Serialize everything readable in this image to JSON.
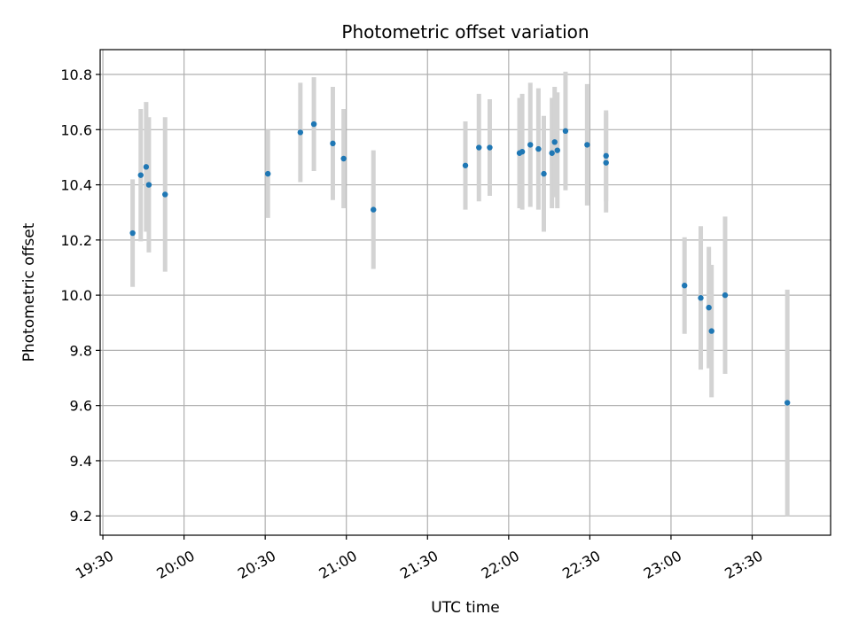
{
  "chart_data": {
    "type": "scatter",
    "title": "Photometric offset variation",
    "xlabel": "UTC time",
    "ylabel": "Photometric offset",
    "grid": true,
    "legend": "none",
    "colors": {
      "points": "#1f77b4",
      "errorbars": "#d3d3d3",
      "grid": "#b0b0b0"
    },
    "xlim": [
      "19:29",
      "23:59"
    ],
    "ylim": [
      9.13,
      10.89
    ],
    "xticks": [
      "19:30",
      "20:00",
      "20:30",
      "21:00",
      "21:30",
      "22:00",
      "22:30",
      "23:00",
      "23:30"
    ],
    "yticks": [
      "9.2",
      "9.4",
      "9.6",
      "9.8",
      "10.0",
      "10.2",
      "10.4",
      "10.6",
      "10.8"
    ],
    "points": [
      {
        "x": "19:41",
        "y": 10.225,
        "err": 0.195
      },
      {
        "x": "19:44",
        "y": 10.435,
        "err": 0.24
      },
      {
        "x": "19:46",
        "y": 10.465,
        "err": 0.235
      },
      {
        "x": "19:47",
        "y": 10.4,
        "err": 0.245
      },
      {
        "x": "19:53",
        "y": 10.365,
        "err": 0.28
      },
      {
        "x": "20:31",
        "y": 10.44,
        "err": 0.16
      },
      {
        "x": "20:43",
        "y": 10.59,
        "err": 0.18
      },
      {
        "x": "20:48",
        "y": 10.62,
        "err": 0.17
      },
      {
        "x": "20:55",
        "y": 10.55,
        "err": 0.205
      },
      {
        "x": "20:59",
        "y": 10.495,
        "err": 0.18
      },
      {
        "x": "21:10",
        "y": 10.31,
        "err": 0.215
      },
      {
        "x": "21:44",
        "y": 10.47,
        "err": 0.16
      },
      {
        "x": "21:49",
        "y": 10.535,
        "err": 0.195
      },
      {
        "x": "21:53",
        "y": 10.535,
        "err": 0.175
      },
      {
        "x": "22:04",
        "y": 10.515,
        "err": 0.2
      },
      {
        "x": "22:05",
        "y": 10.52,
        "err": 0.21
      },
      {
        "x": "22:08",
        "y": 10.545,
        "err": 0.225
      },
      {
        "x": "22:11",
        "y": 10.53,
        "err": 0.22
      },
      {
        "x": "22:13",
        "y": 10.44,
        "err": 0.21
      },
      {
        "x": "22:16",
        "y": 10.515,
        "err": 0.2
      },
      {
        "x": "22:17",
        "y": 10.555,
        "err": 0.2
      },
      {
        "x": "22:18",
        "y": 10.525,
        "err": 0.21
      },
      {
        "x": "22:21",
        "y": 10.595,
        "err": 0.215
      },
      {
        "x": "22:29",
        "y": 10.545,
        "err": 0.22
      },
      {
        "x": "22:36",
        "y": 10.505,
        "err": 0.165
      },
      {
        "x": "22:36",
        "y": 10.48,
        "err": 0.18
      },
      {
        "x": "23:05",
        "y": 10.035,
        "err": 0.175
      },
      {
        "x": "23:11",
        "y": 9.99,
        "err": 0.26
      },
      {
        "x": "23:14",
        "y": 9.955,
        "err": 0.22
      },
      {
        "x": "23:15",
        "y": 9.87,
        "err": 0.24
      },
      {
        "x": "23:20",
        "y": 10.0,
        "err": 0.285
      },
      {
        "x": "23:43",
        "y": 9.61,
        "err": 0.41
      }
    ]
  }
}
